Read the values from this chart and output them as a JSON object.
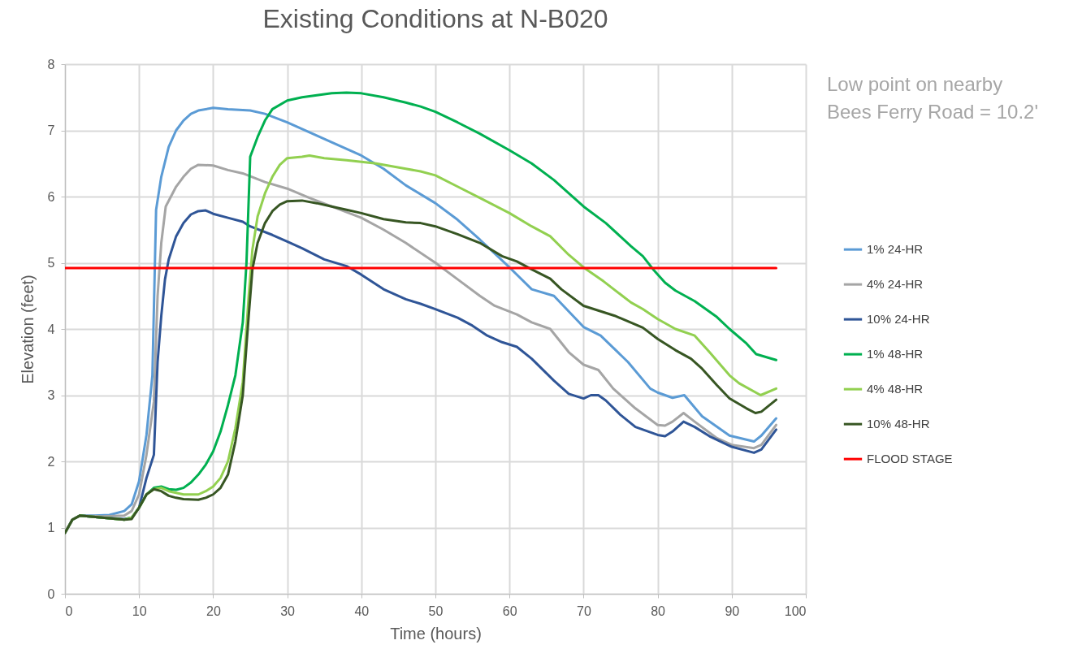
{
  "chart_data": {
    "type": "line",
    "title": "Existing Conditions at N-B020",
    "xlabel": "Time (hours)",
    "ylabel": "Elevation (feet)",
    "xlim": [
      0,
      100
    ],
    "xticks": [
      0,
      10,
      20,
      30,
      40,
      50,
      60,
      70,
      80,
      90,
      100
    ],
    "ylim": [
      0,
      8
    ],
    "yticks": [
      0,
      1,
      2,
      3,
      4,
      5,
      6,
      7,
      8
    ],
    "grid": true,
    "legend": "right",
    "marker": "none",
    "line_style": "solid",
    "annotations": [
      "Low point on nearby",
      "Bees Ferry Road = 10.2'"
    ],
    "series": [
      {
        "name": "1% 24-HR",
        "color": "#5b9bd5",
        "x": [
          0,
          1,
          2,
          4,
          6,
          8,
          9,
          10,
          11,
          11.8,
          12.3,
          13,
          14,
          15,
          16,
          17,
          18,
          20,
          22,
          25,
          27,
          30,
          33,
          36,
          40,
          43,
          46,
          50,
          53,
          56,
          60,
          63,
          66,
          70,
          72.3,
          76,
          79,
          80,
          82,
          83.6,
          86,
          89.7,
          93,
          94,
          96
        ],
        "values": [
          0.92,
          1.12,
          1.18,
          1.18,
          1.19,
          1.25,
          1.35,
          1.7,
          2.4,
          3.3,
          5.8,
          6.3,
          6.75,
          7.0,
          7.15,
          7.25,
          7.3,
          7.34,
          7.32,
          7.3,
          7.25,
          7.12,
          6.97,
          6.82,
          6.62,
          6.42,
          6.17,
          5.9,
          5.65,
          5.35,
          4.93,
          4.6,
          4.5,
          4.03,
          3.9,
          3.5,
          3.1,
          3.04,
          2.96,
          3.0,
          2.68,
          2.39,
          2.3,
          2.39,
          2.65
        ]
      },
      {
        "name": "4% 24-HR",
        "color": "#a5a5a5",
        "x": [
          0,
          1,
          2,
          5,
          8,
          9,
          10,
          11,
          12,
          12.5,
          13,
          13.6,
          15,
          16,
          17,
          18,
          20,
          22,
          24,
          27,
          30,
          33,
          36,
          40,
          43,
          46,
          50,
          53,
          56,
          58,
          61,
          63,
          65.5,
          68,
          70,
          72,
          74,
          77,
          80,
          81,
          82,
          83.5,
          85,
          88,
          90,
          93,
          94,
          96
        ],
        "values": [
          0.92,
          1.12,
          1.18,
          1.17,
          1.18,
          1.25,
          1.5,
          2.1,
          2.9,
          4.5,
          5.3,
          5.85,
          6.15,
          6.3,
          6.42,
          6.48,
          6.47,
          6.4,
          6.35,
          6.22,
          6.12,
          5.98,
          5.85,
          5.68,
          5.5,
          5.3,
          5.0,
          4.75,
          4.5,
          4.35,
          4.22,
          4.1,
          4.0,
          3.65,
          3.46,
          3.38,
          3.1,
          2.8,
          2.55,
          2.54,
          2.6,
          2.73,
          2.6,
          2.35,
          2.25,
          2.2,
          2.25,
          2.55
        ]
      },
      {
        "name": "10% 24-HR",
        "color": "#2f5597",
        "x": [
          0,
          1,
          2,
          5,
          8,
          9,
          10,
          11,
          12,
          12.5,
          13,
          13.5,
          14,
          15,
          16,
          17,
          18,
          19,
          20,
          22,
          24,
          25,
          28,
          30,
          32,
          35,
          38,
          40,
          43,
          46,
          48,
          50,
          53,
          55,
          57,
          59,
          61,
          63,
          66,
          68,
          70,
          71,
          72,
          73,
          75,
          77,
          80,
          81,
          82,
          83.5,
          85,
          87,
          90,
          93,
          94,
          96
        ],
        "values": [
          0.92,
          1.12,
          1.18,
          1.15,
          1.13,
          1.15,
          1.3,
          1.75,
          2.1,
          3.5,
          4.2,
          4.75,
          5.05,
          5.4,
          5.6,
          5.73,
          5.78,
          5.79,
          5.74,
          5.68,
          5.62,
          5.55,
          5.42,
          5.32,
          5.22,
          5.05,
          4.95,
          4.82,
          4.6,
          4.45,
          4.38,
          4.3,
          4.17,
          4.05,
          3.9,
          3.8,
          3.73,
          3.55,
          3.22,
          3.02,
          2.95,
          3.0,
          3.0,
          2.92,
          2.7,
          2.52,
          2.4,
          2.38,
          2.45,
          2.6,
          2.52,
          2.38,
          2.22,
          2.13,
          2.18,
          2.48
        ]
      },
      {
        "name": "1% 48-HR",
        "color": "#00b050",
        "x": [
          2,
          5,
          8,
          9,
          10,
          11,
          12,
          13,
          14,
          15,
          16,
          17,
          18,
          19,
          20,
          21,
          22,
          23,
          24,
          24.5,
          25,
          26,
          27,
          28,
          30,
          32,
          34,
          36,
          38,
          40,
          43,
          46,
          48,
          50,
          53,
          56,
          60,
          63,
          66,
          70,
          73,
          76.4,
          78,
          79.4,
          81,
          82.4,
          85,
          88,
          89.7,
          92,
          93.3,
          96
        ],
        "values": [
          1.18,
          1.15,
          1.12,
          1.15,
          1.3,
          1.5,
          1.6,
          1.62,
          1.58,
          1.57,
          1.6,
          1.68,
          1.8,
          1.95,
          2.15,
          2.45,
          2.85,
          3.3,
          4.1,
          5.0,
          6.6,
          6.9,
          7.15,
          7.32,
          7.45,
          7.5,
          7.53,
          7.56,
          7.57,
          7.56,
          7.5,
          7.42,
          7.36,
          7.28,
          7.12,
          6.95,
          6.7,
          6.5,
          6.25,
          5.85,
          5.6,
          5.25,
          5.1,
          4.9,
          4.7,
          4.58,
          4.42,
          4.18,
          4.0,
          3.78,
          3.62,
          3.53
        ]
      },
      {
        "name": "4% 48-HR",
        "color": "#92d050",
        "x": [
          0,
          1,
          2,
          5,
          8,
          9,
          10,
          11,
          12,
          13,
          14,
          16,
          18,
          19,
          20,
          21,
          22,
          23,
          24,
          24.8,
          25.3,
          26,
          27,
          28,
          29,
          30,
          32,
          33,
          35,
          38,
          42,
          46,
          48,
          50,
          53,
          56,
          60,
          63,
          65.5,
          68,
          70,
          72.7,
          76.4,
          78,
          80,
          82.4,
          85,
          87,
          89.7,
          91,
          93.9,
          96
        ],
        "values": [
          0.92,
          1.12,
          1.18,
          1.15,
          1.12,
          1.15,
          1.3,
          1.5,
          1.58,
          1.6,
          1.55,
          1.5,
          1.5,
          1.55,
          1.62,
          1.75,
          2.0,
          2.5,
          3.2,
          4.5,
          5.2,
          5.7,
          6.05,
          6.3,
          6.48,
          6.58,
          6.6,
          6.62,
          6.58,
          6.55,
          6.5,
          6.42,
          6.38,
          6.32,
          6.15,
          5.98,
          5.75,
          5.55,
          5.4,
          5.12,
          4.93,
          4.72,
          4.4,
          4.3,
          4.15,
          4.0,
          3.9,
          3.65,
          3.3,
          3.18,
          3.0,
          3.1
        ]
      },
      {
        "name": "10% 48-HR",
        "color": "#375623",
        "x": [
          0,
          1,
          2,
          5,
          8,
          9,
          10,
          11,
          12,
          13,
          14,
          15,
          16,
          18,
          19,
          20,
          21,
          22,
          23,
          24,
          24.8,
          25.3,
          26,
          27,
          28,
          29,
          30,
          32,
          34,
          36,
          38,
          40,
          43,
          46,
          48,
          50,
          53,
          56,
          59,
          61,
          63,
          65.5,
          67,
          70,
          74.2,
          78,
          80,
          82.4,
          84.5,
          86,
          88,
          89.7,
          92,
          93.2,
          94,
          96
        ],
        "values": [
          0.92,
          1.12,
          1.18,
          1.15,
          1.12,
          1.13,
          1.3,
          1.5,
          1.58,
          1.55,
          1.48,
          1.45,
          1.43,
          1.42,
          1.45,
          1.5,
          1.6,
          1.8,
          2.3,
          3.0,
          4.2,
          4.9,
          5.3,
          5.6,
          5.78,
          5.88,
          5.93,
          5.94,
          5.9,
          5.85,
          5.8,
          5.75,
          5.66,
          5.61,
          5.6,
          5.55,
          5.43,
          5.3,
          5.1,
          5.02,
          4.9,
          4.76,
          4.6,
          4.35,
          4.2,
          4.02,
          3.85,
          3.68,
          3.55,
          3.4,
          3.15,
          2.95,
          2.8,
          2.73,
          2.75,
          2.93
        ]
      },
      {
        "name": "FLOOD STAGE",
        "color": "#ff0000",
        "x": [
          0,
          96
        ],
        "values": [
          4.92,
          4.92
        ]
      }
    ]
  }
}
